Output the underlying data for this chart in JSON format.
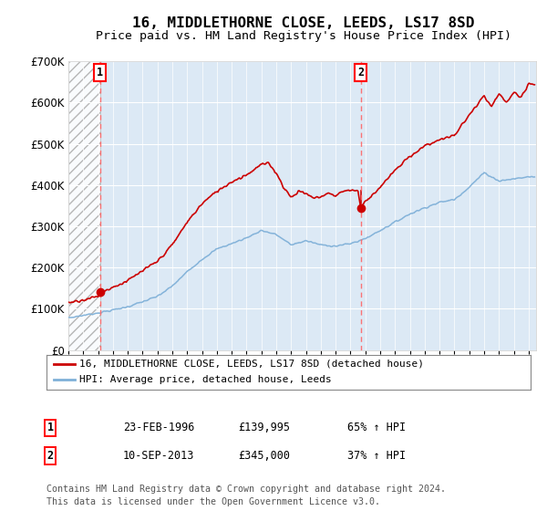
{
  "title": "16, MIDDLETHORNE CLOSE, LEEDS, LS17 8SD",
  "subtitle": "Price paid vs. HM Land Registry's House Price Index (HPI)",
  "sale1_date_label": "23-FEB-1996",
  "sale1_year": 1996.14,
  "sale1_price": 139995,
  "sale1_hpi_pct": "65% ↑ HPI",
  "sale2_date_label": "10-SEP-2013",
  "sale2_year": 2013.69,
  "sale2_price": 345000,
  "sale2_hpi_pct": "37% ↑ HPI",
  "legend_line1": "16, MIDDLETHORNE CLOSE, LEEDS, LS17 8SD (detached house)",
  "legend_line2": "HPI: Average price, detached house, Leeds",
  "footer1": "Contains HM Land Registry data © Crown copyright and database right 2024.",
  "footer2": "This data is licensed under the Open Government Licence v3.0.",
  "ylim": [
    0,
    700000
  ],
  "xlim_start": 1994.0,
  "xlim_end": 2025.5,
  "plot_bg_color": "#dce9f5",
  "hatch_color": "#aaaaaa",
  "red_line_color": "#cc0000",
  "blue_line_color": "#7fb0d8",
  "dashed_line_color": "#ff6666",
  "marker_color": "#cc0000",
  "fig_bg_color": "#ffffff",
  "grid_color": "#ffffff",
  "hpi_base_1994": 78000,
  "hpi_control_points": [
    [
      1994,
      78000
    ],
    [
      1995,
      84000
    ],
    [
      1996,
      90000
    ],
    [
      1997,
      97000
    ],
    [
      1998,
      105000
    ],
    [
      1999,
      117000
    ],
    [
      2000,
      130000
    ],
    [
      2001,
      155000
    ],
    [
      2002,
      190000
    ],
    [
      2003,
      220000
    ],
    [
      2004,
      245000
    ],
    [
      2005,
      258000
    ],
    [
      2006,
      272000
    ],
    [
      2007,
      290000
    ],
    [
      2008,
      280000
    ],
    [
      2009,
      255000
    ],
    [
      2010,
      265000
    ],
    [
      2011,
      255000
    ],
    [
      2012,
      252000
    ],
    [
      2013,
      258000
    ],
    [
      2014,
      270000
    ],
    [
      2015,
      290000
    ],
    [
      2016,
      310000
    ],
    [
      2017,
      330000
    ],
    [
      2018,
      345000
    ],
    [
      2019,
      358000
    ],
    [
      2020,
      365000
    ],
    [
      2021,
      395000
    ],
    [
      2022,
      430000
    ],
    [
      2023,
      410000
    ],
    [
      2024,
      415000
    ],
    [
      2025,
      420000
    ]
  ],
  "red_control_points": [
    [
      1994,
      115000
    ],
    [
      1995,
      122000
    ],
    [
      1996,
      130000
    ],
    [
      1996.14,
      139995
    ],
    [
      1997,
      152000
    ],
    [
      1998,
      168000
    ],
    [
      1999,
      192000
    ],
    [
      2000,
      215000
    ],
    [
      2001,
      255000
    ],
    [
      2002,
      310000
    ],
    [
      2003,
      355000
    ],
    [
      2004,
      385000
    ],
    [
      2005,
      408000
    ],
    [
      2006,
      425000
    ],
    [
      2007,
      450000
    ],
    [
      2007.5,
      452000
    ],
    [
      2008,
      430000
    ],
    [
      2008.5,
      395000
    ],
    [
      2009,
      370000
    ],
    [
      2009.5,
      385000
    ],
    [
      2010,
      380000
    ],
    [
      2010.5,
      368000
    ],
    [
      2011,
      372000
    ],
    [
      2011.5,
      380000
    ],
    [
      2012,
      375000
    ],
    [
      2012.5,
      385000
    ],
    [
      2013,
      388000
    ],
    [
      2013.5,
      387000
    ],
    [
      2013.69,
      345000
    ],
    [
      2014,
      360000
    ],
    [
      2015,
      395000
    ],
    [
      2016,
      435000
    ],
    [
      2017,
      470000
    ],
    [
      2018,
      495000
    ],
    [
      2019,
      510000
    ],
    [
      2020,
      520000
    ],
    [
      2021,
      570000
    ],
    [
      2022,
      615000
    ],
    [
      2022.5,
      590000
    ],
    [
      2023,
      620000
    ],
    [
      2023.5,
      600000
    ],
    [
      2024,
      625000
    ],
    [
      2024.5,
      610000
    ],
    [
      2025,
      645000
    ]
  ]
}
